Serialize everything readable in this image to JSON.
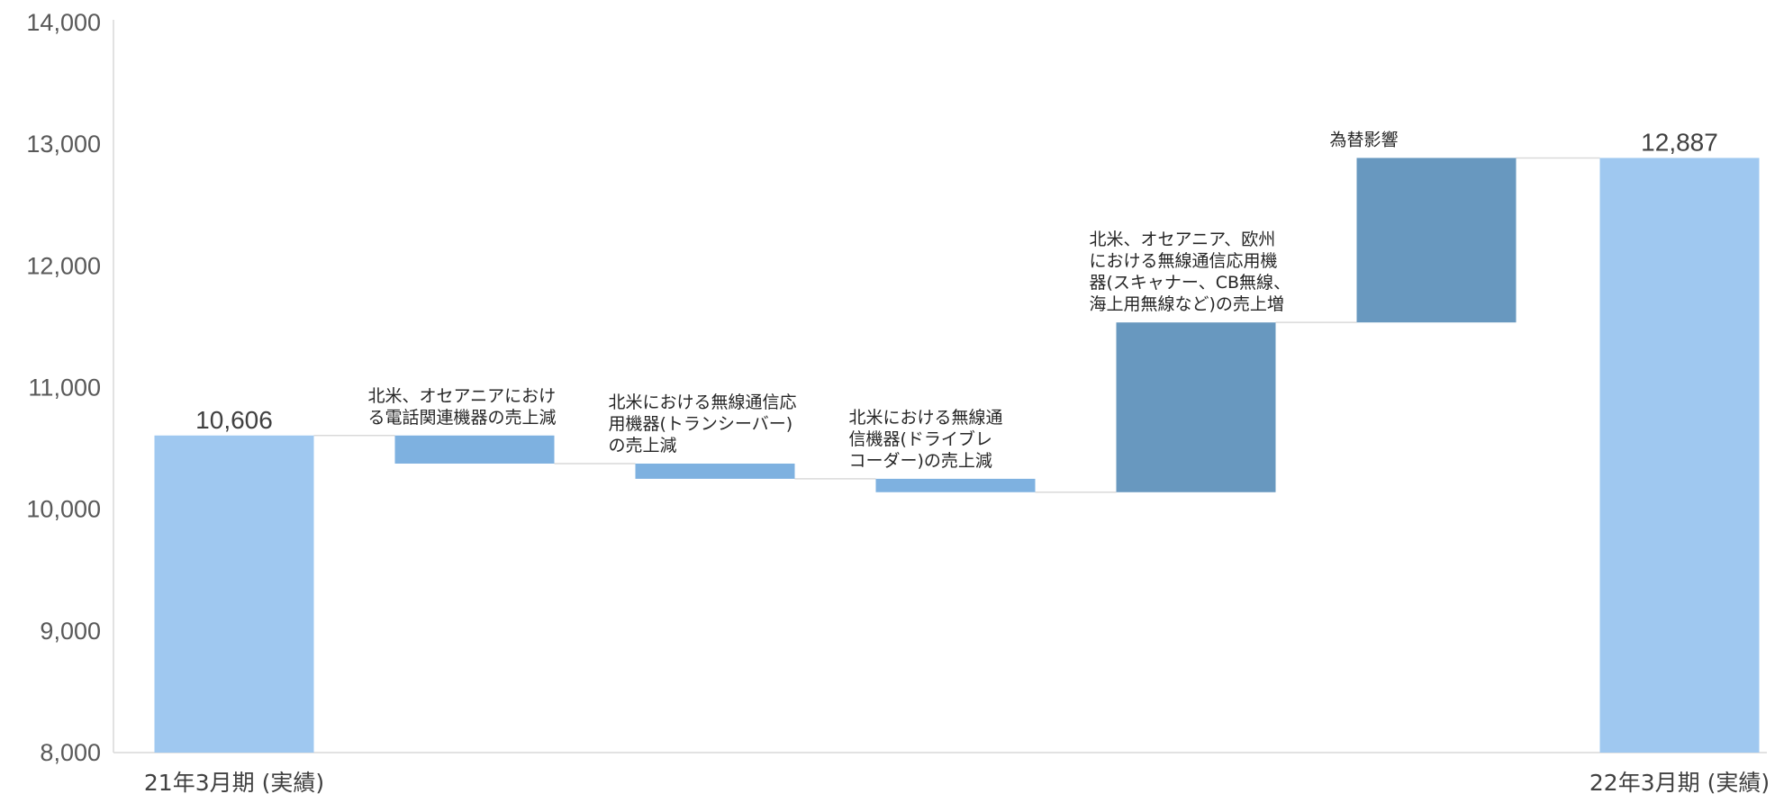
{
  "chart_data": {
    "type": "bar",
    "subtype": "waterfall",
    "categories": [
      "21年3月期 (実績)",
      "",
      "",
      "",
      "",
      "",
      "22年3月期 (実績)"
    ],
    "steps": [
      {
        "kind": "total",
        "value": 10606,
        "label": "10,606",
        "annotation": []
      },
      {
        "kind": "delta",
        "start": 10606,
        "end": 10375,
        "annotation": [
          "北米、オセアニアにおけ",
          "る電話関連機器の売上減"
        ]
      },
      {
        "kind": "delta",
        "start": 10375,
        "end": 10250,
        "annotation": [
          "北米における無線通信応",
          "用機器(トランシーバー)",
          "の売上減"
        ]
      },
      {
        "kind": "delta",
        "start": 10250,
        "end": 10140,
        "annotation": [
          "北米における無線通",
          "信機器(ドライブレ",
          "コーダー)の売上減"
        ]
      },
      {
        "kind": "delta",
        "start": 10140,
        "end": 11535,
        "annotation": [
          "北米、オセアニア、欧州",
          "における無線通信応用機",
          "器(スキャナー、CB無線、",
          "海上用無線など)の売上増"
        ]
      },
      {
        "kind": "delta",
        "start": 11535,
        "end": 12887,
        "annotation": [
          "為替影響"
        ]
      },
      {
        "kind": "total",
        "value": 12887,
        "label": "12,887",
        "annotation": []
      }
    ],
    "yticks": [
      "8,000",
      "9,000",
      "10,000",
      "11,000",
      "12,000",
      "13,000",
      "14,000"
    ],
    "ylim": [
      8000,
      14000
    ],
    "grid": false,
    "colors": {
      "total": "#9fc8f0",
      "decrease": "#7eb1e0",
      "increase": "#6898bf",
      "axis": "#d9d9d9",
      "connector": "#d9d9d9"
    }
  }
}
